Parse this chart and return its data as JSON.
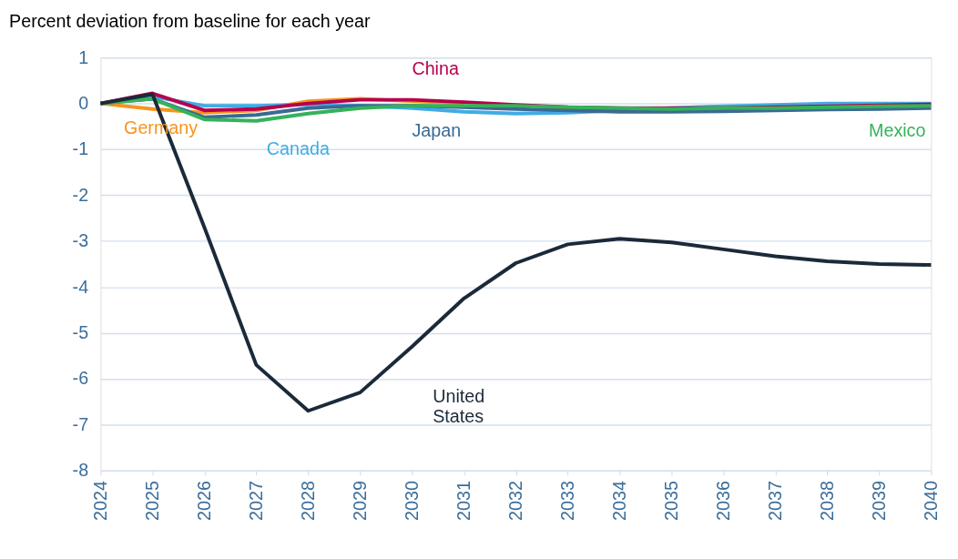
{
  "chart_data": {
    "type": "line",
    "title": "Percent deviation from baseline for each year",
    "categories": [
      "2024",
      "2025",
      "2026",
      "2027",
      "2028",
      "2029",
      "2030",
      "2031",
      "2032",
      "2033",
      "2034",
      "2035",
      "2036",
      "2037",
      "2038",
      "2039",
      "2040"
    ],
    "series": [
      {
        "name": "Germany",
        "color": "#f7941d",
        "values": [
          0,
          -0.12,
          -0.2,
          -0.15,
          0.05,
          0.1,
          0.05,
          0.0,
          null,
          null,
          null,
          null,
          null,
          null,
          null,
          null,
          null
        ]
      },
      {
        "name": "Canada",
        "color": "#41ace3",
        "values": [
          0,
          0.15,
          -0.05,
          -0.05,
          -0.02,
          -0.05,
          -0.1,
          -0.18,
          -0.22,
          -0.2,
          -0.15,
          -0.1,
          -0.06,
          -0.03,
          0.0,
          0.0,
          0.0
        ]
      },
      {
        "name": "Japan",
        "color": "#3a6a94",
        "values": [
          0,
          0.1,
          -0.3,
          -0.25,
          -0.1,
          -0.05,
          -0.05,
          -0.08,
          -0.12,
          -0.15,
          -0.18,
          -0.18,
          -0.17,
          -0.15,
          -0.13,
          -0.12,
          -0.1
        ]
      },
      {
        "name": "China",
        "color": "#b5004e",
        "values": [
          0,
          0.22,
          -0.15,
          -0.12,
          0.0,
          0.08,
          0.08,
          0.03,
          -0.03,
          -0.08,
          -0.1,
          -0.1,
          -0.1,
          -0.08,
          -0.06,
          -0.04,
          -0.02
        ]
      },
      {
        "name": "Mexico",
        "color": "#35b25a",
        "values": [
          0,
          0.1,
          -0.35,
          -0.38,
          -0.22,
          -0.1,
          -0.05,
          -0.05,
          -0.05,
          -0.08,
          -0.1,
          -0.12,
          -0.1,
          -0.1,
          -0.08,
          -0.06,
          -0.05
        ]
      },
      {
        "name": "United States",
        "color": "#1b2a3a",
        "values": [
          0,
          0.2,
          -2.7,
          -5.7,
          -6.7,
          -6.3,
          -5.3,
          -4.25,
          -3.48,
          -3.07,
          -2.95,
          -3.03,
          -3.18,
          -3.33,
          -3.44,
          -3.5,
          -3.52
        ]
      }
    ],
    "ylim": [
      -8,
      1
    ],
    "yticks": [
      -8,
      -7,
      -6,
      -5,
      -4,
      -3,
      -2,
      -1,
      0,
      1
    ],
    "grid": "y",
    "legend": false,
    "marker": "none",
    "line_style": "solid"
  }
}
